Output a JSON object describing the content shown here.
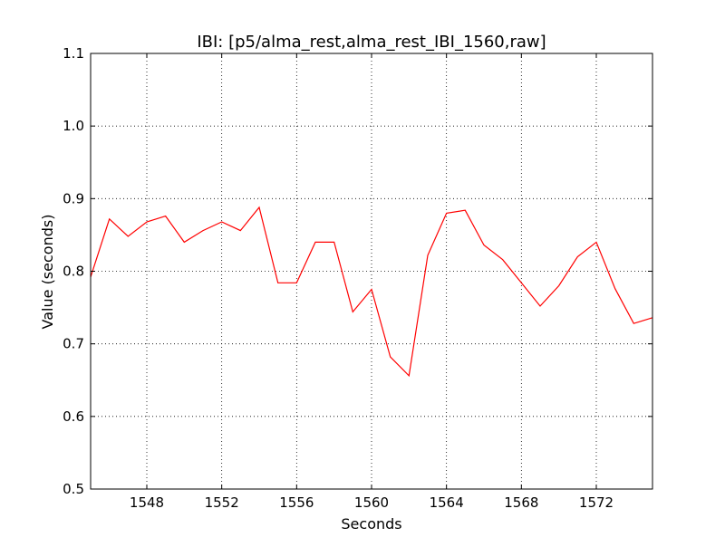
{
  "chart_data": {
    "type": "line",
    "title": "IBI: [p5/alma_rest,alma_rest_IBI_1560,raw]",
    "xlabel": "Seconds",
    "ylabel": "Value (seconds)",
    "xlim": [
      1545,
      1575
    ],
    "ylim": [
      0.5,
      1.1
    ],
    "xticks": [
      1548,
      1552,
      1556,
      1560,
      1564,
      1568,
      1572
    ],
    "yticks": [
      0.5,
      0.6,
      0.7,
      0.8,
      0.9,
      1.0,
      1.1
    ],
    "xtick_labels": [
      "1548",
      "1552",
      "1556",
      "1560",
      "1564",
      "1568",
      "1572"
    ],
    "ytick_labels": [
      "0.5",
      "0.6",
      "0.7",
      "0.8",
      "0.9",
      "1.0",
      "1.1"
    ],
    "grid": true,
    "series": [
      {
        "color": "#ff0000",
        "x": [
          1545,
          1546,
          1547,
          1548,
          1549,
          1550,
          1551,
          1552,
          1553,
          1554,
          1555,
          1556,
          1557,
          1558,
          1559,
          1560,
          1561,
          1562,
          1563,
          1564,
          1565,
          1566,
          1567,
          1568,
          1569,
          1570,
          1571,
          1572,
          1573,
          1574,
          1575
        ],
        "y": [
          0.792,
          0.872,
          0.848,
          0.868,
          0.876,
          0.84,
          0.856,
          0.868,
          0.856,
          0.888,
          0.784,
          0.784,
          0.84,
          0.84,
          0.744,
          0.775,
          0.682,
          0.656,
          0.822,
          0.88,
          0.884,
          0.836,
          0.816,
          0.784,
          0.752,
          0.78,
          0.82,
          0.84,
          0.776,
          0.728,
          0.736
        ]
      }
    ]
  }
}
